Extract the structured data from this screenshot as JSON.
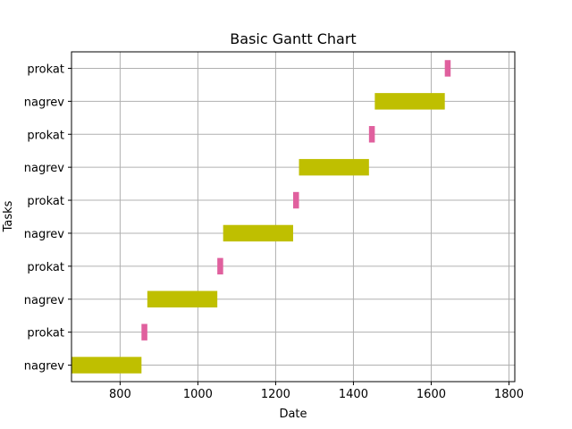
{
  "chart_data": {
    "type": "bar",
    "orientation": "horizontal",
    "title": "Basic Gantt Chart",
    "xlabel": "Date",
    "ylabel": "Tasks",
    "xlim": [
      675,
      1815
    ],
    "xticks": [
      800,
      1000,
      1200,
      1400,
      1600,
      1800
    ],
    "grid": true,
    "colors": {
      "nagrev": "#bfbf00",
      "prokat": "#e0609e",
      "grid": "#b0b0b0"
    },
    "tasks": [
      {
        "label": "nagrev",
        "start": 675,
        "end": 855
      },
      {
        "label": "prokat",
        "start": 855,
        "end": 870
      },
      {
        "label": "nagrev",
        "start": 870,
        "end": 1050
      },
      {
        "label": "prokat",
        "start": 1050,
        "end": 1065
      },
      {
        "label": "nagrev",
        "start": 1065,
        "end": 1245
      },
      {
        "label": "prokat",
        "start": 1245,
        "end": 1260
      },
      {
        "label": "nagrev",
        "start": 1260,
        "end": 1440
      },
      {
        "label": "prokat",
        "start": 1440,
        "end": 1455
      },
      {
        "label": "nagrev",
        "start": 1455,
        "end": 1635
      },
      {
        "label": "prokat",
        "start": 1635,
        "end": 1650
      }
    ]
  }
}
